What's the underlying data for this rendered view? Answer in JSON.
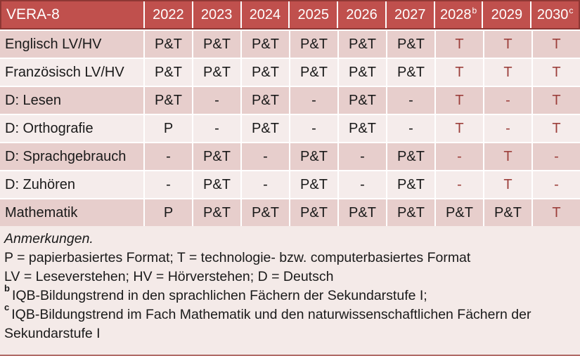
{
  "colors": {
    "header_bg": "#c0504d",
    "header_border": "#8e3734",
    "band_dark": "#e7cecc",
    "band_light": "#f5eceb",
    "accent_text": "#9c3f3b",
    "header_text": "#ffffff",
    "body_text": "#1a1a1a",
    "notes_bg": "#f4eae8",
    "separator": "#ffffff"
  },
  "table": {
    "title": "VERA-8",
    "columns": [
      {
        "label": "2022",
        "sup": ""
      },
      {
        "label": "2023",
        "sup": ""
      },
      {
        "label": "2024",
        "sup": ""
      },
      {
        "label": "2025",
        "sup": ""
      },
      {
        "label": "2026",
        "sup": ""
      },
      {
        "label": "2027",
        "sup": ""
      },
      {
        "label": "2028",
        "sup": "b"
      },
      {
        "label": "2029",
        "sup": ""
      },
      {
        "label": "2030",
        "sup": "c"
      }
    ],
    "rows": [
      {
        "label": "Englisch LV/HV",
        "band": "dark",
        "cells": [
          {
            "text": "P&T",
            "accent": false
          },
          {
            "text": "P&T",
            "accent": false
          },
          {
            "text": "P&T",
            "accent": false
          },
          {
            "text": "P&T",
            "accent": false
          },
          {
            "text": "P&T",
            "accent": false
          },
          {
            "text": "P&T",
            "accent": false
          },
          {
            "text": "T",
            "accent": true
          },
          {
            "text": "T",
            "accent": true
          },
          {
            "text": "T",
            "accent": true
          }
        ]
      },
      {
        "label": "Französisch LV/HV",
        "band": "light",
        "cells": [
          {
            "text": "P&T",
            "accent": false
          },
          {
            "text": "P&T",
            "accent": false
          },
          {
            "text": "P&T",
            "accent": false
          },
          {
            "text": "P&T",
            "accent": false
          },
          {
            "text": "P&T",
            "accent": false
          },
          {
            "text": "P&T",
            "accent": false
          },
          {
            "text": "T",
            "accent": true
          },
          {
            "text": "T",
            "accent": true
          },
          {
            "text": "T",
            "accent": true
          }
        ]
      },
      {
        "label": "D: Lesen",
        "band": "dark",
        "cells": [
          {
            "text": "P&T",
            "accent": false
          },
          {
            "text": "-",
            "accent": false
          },
          {
            "text": "P&T",
            "accent": false
          },
          {
            "text": "-",
            "accent": false
          },
          {
            "text": "P&T",
            "accent": false
          },
          {
            "text": "-",
            "accent": false
          },
          {
            "text": "T",
            "accent": true
          },
          {
            "text": "-",
            "accent": true
          },
          {
            "text": "T",
            "accent": true
          }
        ]
      },
      {
        "label": "D: Orthografie",
        "band": "light",
        "cells": [
          {
            "text": "P",
            "accent": false
          },
          {
            "text": "-",
            "accent": false
          },
          {
            "text": "P&T",
            "accent": false
          },
          {
            "text": "-",
            "accent": false
          },
          {
            "text": "P&T",
            "accent": false
          },
          {
            "text": "-",
            "accent": false
          },
          {
            "text": "T",
            "accent": true
          },
          {
            "text": "-",
            "accent": true
          },
          {
            "text": "T",
            "accent": true
          }
        ]
      },
      {
        "label": "D: Sprachgebrauch",
        "band": "dark",
        "cells": [
          {
            "text": "-",
            "accent": false
          },
          {
            "text": "P&T",
            "accent": false
          },
          {
            "text": "-",
            "accent": false
          },
          {
            "text": "P&T",
            "accent": false
          },
          {
            "text": "-",
            "accent": false
          },
          {
            "text": "P&T",
            "accent": false
          },
          {
            "text": "-",
            "accent": true
          },
          {
            "text": "T",
            "accent": true
          },
          {
            "text": "-",
            "accent": true
          }
        ]
      },
      {
        "label": "D: Zuhören",
        "band": "light",
        "cells": [
          {
            "text": "-",
            "accent": false
          },
          {
            "text": "P&T",
            "accent": false
          },
          {
            "text": "-",
            "accent": false
          },
          {
            "text": "P&T",
            "accent": false
          },
          {
            "text": "-",
            "accent": false
          },
          {
            "text": "P&T",
            "accent": false
          },
          {
            "text": "-",
            "accent": true
          },
          {
            "text": "T",
            "accent": true
          },
          {
            "text": "-",
            "accent": true
          }
        ]
      },
      {
        "label": "Mathematik",
        "band": "dark",
        "cells": [
          {
            "text": "P",
            "accent": false
          },
          {
            "text": "P&T",
            "accent": false
          },
          {
            "text": "P&T",
            "accent": false
          },
          {
            "text": "P&T",
            "accent": false
          },
          {
            "text": "P&T",
            "accent": false
          },
          {
            "text": "P&T",
            "accent": false
          },
          {
            "text": "P&T",
            "accent": false
          },
          {
            "text": "P&T",
            "accent": false
          },
          {
            "text": "T",
            "accent": true
          }
        ]
      }
    ]
  },
  "notes": {
    "title": "Anmerkungen.",
    "formats_line": "P = papierbasiertes Format; T = technologie- bzw. computerbasiertes Format",
    "abbreviations_line": "LV = Leseverstehen; HV = Hörverstehen; D = Deutsch",
    "note_b_sup": "b",
    "note_b_text": "IQB-Bildungstrend in den sprachlichen Fächern der Sekundarstufe I;",
    "note_c_sup": "c",
    "note_c_text": "IQB-Bildungstrend im Fach Mathematik und den naturwissenschaftlichen Fächern der Sekundarstufe I"
  }
}
